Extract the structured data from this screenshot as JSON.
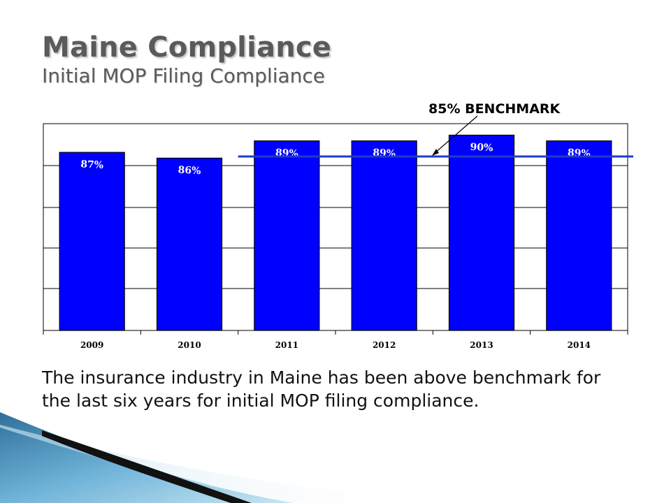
{
  "slide": {
    "title": "Maine Compliance",
    "subtitle": "Initial MOP Filing Compliance",
    "caption": "The insurance industry in Maine has been above benchmark for the last six years for initial MOP filing compliance."
  },
  "chart_data": {
    "type": "bar",
    "categories": [
      "2009",
      "2010",
      "2011",
      "2012",
      "2013",
      "2014"
    ],
    "values": [
      87,
      86,
      89,
      89,
      90,
      89
    ],
    "data_labels": [
      "87%",
      "86%",
      "89%",
      "89%",
      "90%",
      "89%"
    ],
    "benchmark": {
      "value": 85,
      "label": "85% BENCHMARK",
      "color": "#1f3cc9"
    },
    "bar_color": "#0000ff",
    "ylim": [
      56,
      92
    ],
    "grid": true,
    "title": "",
    "xlabel": "",
    "ylabel": ""
  }
}
